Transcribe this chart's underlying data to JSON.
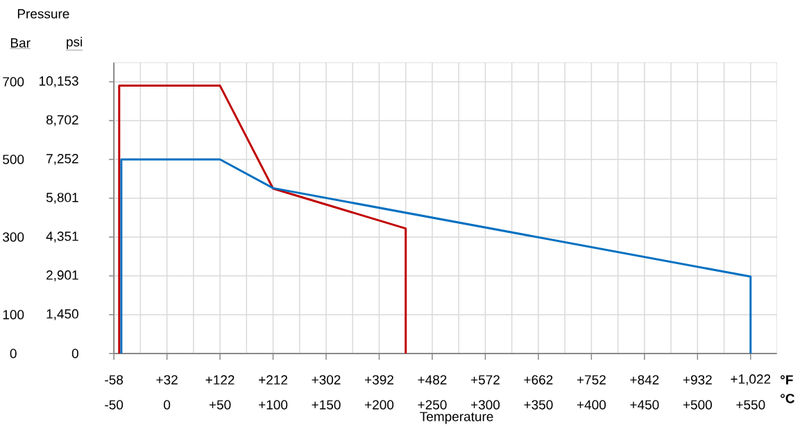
{
  "chart_data": {
    "type": "line",
    "title": "Pressure",
    "ylabel": "Bar",
    "y2label": "psi",
    "xlabel": "Temperature",
    "annotations": [
      "°F",
      "°C"
    ],
    "xlim": [
      -50,
      575
    ],
    "xticks": [
      -50,
      0,
      {
        "value": 50,
        "label": "+50"
      },
      {
        "value": 100,
        "label": "+100"
      },
      {
        "value": 150,
        "label": "+150"
      },
      {
        "value": 200,
        "label": "+200"
      },
      {
        "value": 250,
        "label": "+250"
      },
      {
        "value": 300,
        "label": "+300"
      },
      {
        "value": 350,
        "label": "+350"
      },
      {
        "value": 400,
        "label": "+400"
      },
      {
        "value": 450,
        "label": "+450"
      },
      {
        "value": 500,
        "label": "+500"
      },
      {
        "value": 550,
        "label": "+550"
      }
    ],
    "x2lim": [
      -58,
      1067
    ],
    "x2ticks": [
      -58,
      {
        "value": 32,
        "label": "+32"
      },
      {
        "value": 122,
        "label": "+122"
      },
      {
        "value": 212,
        "label": "+212"
      },
      {
        "value": 302,
        "label": "+302"
      },
      {
        "value": 392,
        "label": "+392"
      },
      {
        "value": 482,
        "label": "+482"
      },
      {
        "value": 572,
        "label": "+572"
      },
      {
        "value": 662,
        "label": "+662"
      },
      {
        "value": 752,
        "label": "+752"
      },
      {
        "value": 842,
        "label": "+842"
      },
      {
        "value": 932,
        "label": "+932"
      },
      {
        "value": 1022,
        "label": "+1,022"
      }
    ],
    "ylim": [
      0,
      750
    ],
    "yticks": [
      0,
      100,
      300,
      500,
      700
    ],
    "y2lim": [
      0,
      10878
    ],
    "y2ticks": [
      0,
      {
        "value": 1450,
        "label": "1,450"
      },
      {
        "value": 2901,
        "label": "2,901"
      },
      {
        "value": 4351,
        "label": "4,351"
      },
      {
        "value": 5801,
        "label": "5,801"
      },
      {
        "value": 7252,
        "label": "7,252"
      },
      {
        "value": 8702,
        "label": "8,702"
      },
      {
        "value": 10153,
        "label": "10,153"
      }
    ],
    "grid": true,
    "marker": "none",
    "line_style": "solid",
    "series": [
      {
        "color": "#c00000",
        "x": [
          -45,
          -45,
          50,
          100,
          225,
          225
        ],
        "values": [
          0,
          690,
          690,
          425,
          322,
          0
        ]
      },
      {
        "color": "#0070c0",
        "x": [
          -43,
          -43,
          50,
          100,
          550,
          550
        ],
        "values": [
          0,
          500,
          500,
          426,
          198,
          0
        ]
      }
    ]
  }
}
